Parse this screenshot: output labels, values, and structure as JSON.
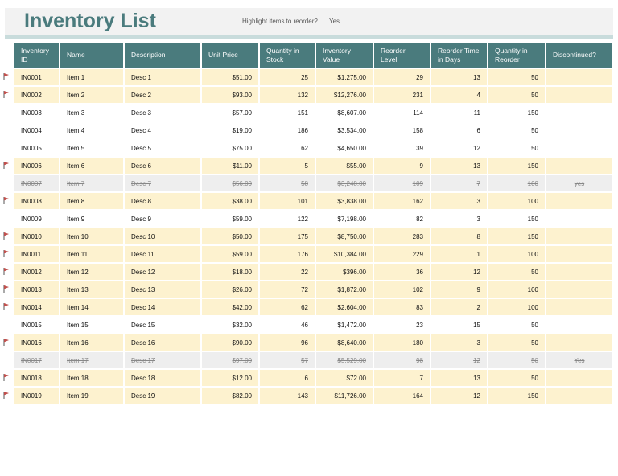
{
  "header": {
    "title": "Inventory List",
    "highlight_label": "Highlight items to reorder?",
    "highlight_value": "Yes"
  },
  "table": {
    "columns": [
      "Inventory ID",
      "Name",
      "Description",
      "Unit Price",
      "Quantity in Stock",
      "Inventory Value",
      "Reorder Level",
      "Reorder Time in Days",
      "Quantity in Reorder",
      "Discontinued?"
    ],
    "rows": [
      [
        "IN0001",
        "Item 1",
        "Desc 1",
        "$51.00",
        "25",
        "$1,275.00",
        "29",
        "13",
        "50",
        null
      ],
      [
        "IN0002",
        "Item 2",
        "Desc 2",
        "$93.00",
        "132",
        "$12,276.00",
        "231",
        "4",
        "50",
        null
      ],
      [
        "IN0003",
        "Item 3",
        "Desc 3",
        "$57.00",
        "151",
        "$8,607.00",
        "114",
        "11",
        "150",
        null
      ],
      [
        "IN0004",
        "Item 4",
        "Desc 4",
        "$19.00",
        "186",
        "$3,534.00",
        "158",
        "6",
        "50",
        null
      ],
      [
        "IN0005",
        "Item 5",
        "Desc 5",
        "$75.00",
        "62",
        "$4,650.00",
        "39",
        "12",
        "50",
        null
      ],
      [
        "IN0006",
        "Item 6",
        "Desc 6",
        "$11.00",
        "5",
        "$55.00",
        "9",
        "13",
        "150",
        null
      ],
      [
        "IN0007",
        "Item 7",
        "Desc 7",
        "$56.00",
        "58",
        "$3,248.00",
        "109",
        "7",
        "100",
        "yes"
      ],
      [
        "IN0008",
        "Item 8",
        "Desc 8",
        "$38.00",
        "101",
        "$3,838.00",
        "162",
        "3",
        "100",
        null
      ],
      [
        "IN0009",
        "Item 9",
        "Desc 9",
        "$59.00",
        "122",
        "$7,198.00",
        "82",
        "3",
        "150",
        null
      ],
      [
        "IN0010",
        "Item 10",
        "Desc 10",
        "$50.00",
        "175",
        "$8,750.00",
        "283",
        "8",
        "150",
        null
      ],
      [
        "IN0011",
        "Item 11",
        "Desc 11",
        "$59.00",
        "176",
        "$10,384.00",
        "229",
        "1",
        "100",
        null
      ],
      [
        "IN0012",
        "Item 12",
        "Desc 12",
        "$18.00",
        "22",
        "$396.00",
        "36",
        "12",
        "50",
        null
      ],
      [
        "IN0013",
        "Item 13",
        "Desc 13",
        "$26.00",
        "72",
        "$1,872.00",
        "102",
        "9",
        "100",
        null
      ],
      [
        "IN0014",
        "Item 14",
        "Desc 14",
        "$42.00",
        "62",
        "$2,604.00",
        "83",
        "2",
        "100",
        null
      ],
      [
        "IN0015",
        "Item 15",
        "Desc 15",
        "$32.00",
        "46",
        "$1,472.00",
        "23",
        "15",
        "50",
        null
      ],
      [
        "IN0016",
        "Item 16",
        "Desc 16",
        "$90.00",
        "96",
        "$8,640.00",
        "180",
        "3",
        "50",
        null
      ],
      [
        "IN0017",
        "Item 17",
        "Desc 17",
        "$97.00",
        "57",
        "$5,529.00",
        "98",
        "12",
        "50",
        "Yes"
      ],
      [
        "IN0018",
        "Item 18",
        "Desc 18",
        "$12.00",
        "6",
        "$72.00",
        "7",
        "13",
        "50",
        null
      ],
      [
        "IN0019",
        "Item 19",
        "Desc 19",
        "$82.00",
        "143",
        "$11,726.00",
        "164",
        "12",
        "150",
        null
      ]
    ]
  }
}
